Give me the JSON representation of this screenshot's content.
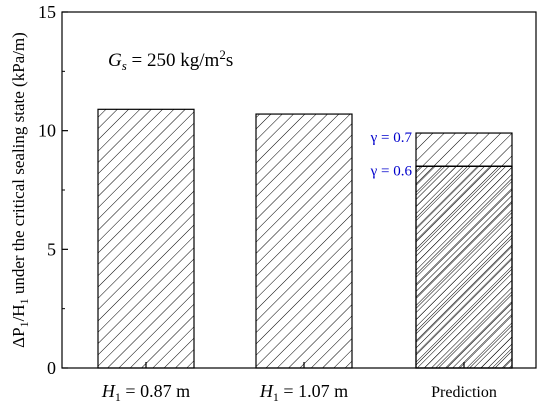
{
  "chart_data": {
    "type": "bar",
    "categories": [
      {
        "main": "H",
        "sub": "1",
        "rest": " = 0.87 m"
      },
      {
        "main": "H",
        "sub": "1",
        "rest": " = 1.07 m"
      },
      {
        "main": "",
        "sub": "",
        "rest": "Prediction"
      }
    ],
    "values": [
      10.9,
      10.7,
      9.9
    ],
    "prediction_split": {
      "lower_value": 8.5,
      "upper_value": 9.9,
      "lower_label": "γ = 0.6",
      "upper_label": "γ = 0.7",
      "label_color": "#0000cc"
    },
    "ylabel": "ΔP1/H1 under the critical sealing state (kPa/m)",
    "ylim": [
      0,
      15
    ],
    "yticks": [
      0,
      5,
      10,
      15
    ],
    "annotation": {
      "prefix": "G",
      "prefix_sub": "s",
      "text": " = 250 kg/m",
      "sup": "2",
      "suffix": "s"
    },
    "grid": false,
    "legend": "none"
  }
}
